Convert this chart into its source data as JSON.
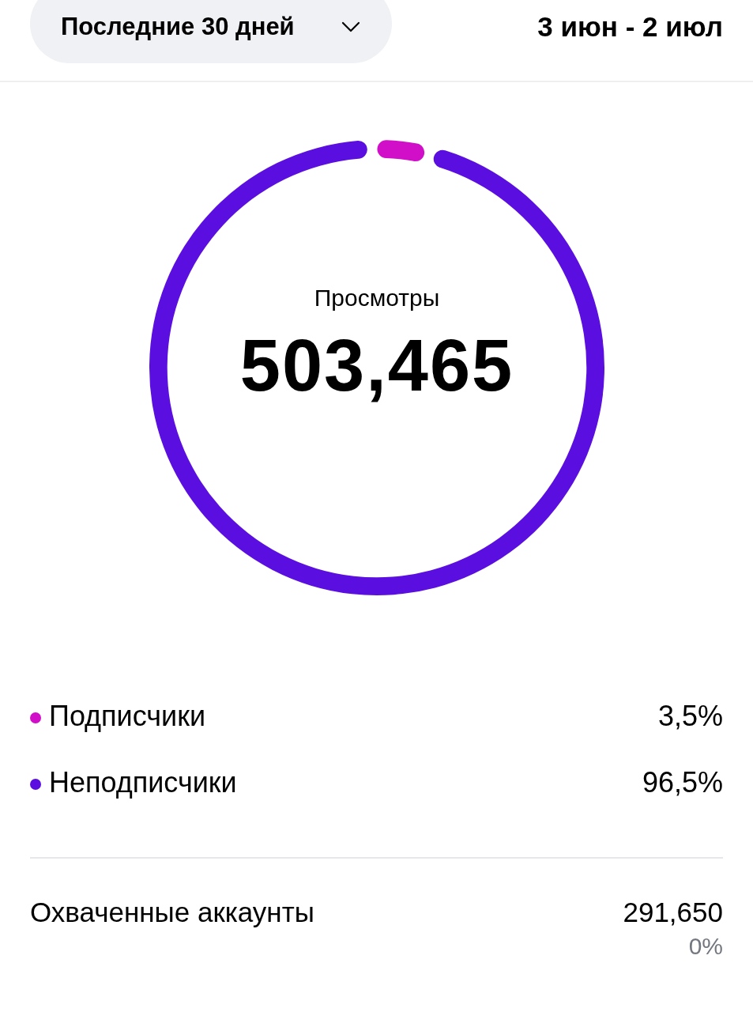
{
  "chart_data": {
    "type": "donut",
    "title": "Просмотры",
    "subtitle": "503,465",
    "categories": [
      "Подписчики",
      "Неподписчики"
    ],
    "values": [
      3.5,
      96.5
    ],
    "colors": [
      "#d10ec8",
      "#5a0fe0"
    ],
    "value_labels": [
      "3,5%",
      "96,5%"
    ],
    "legend": "bottom",
    "annotations": [
      "Последние 30 дней",
      "3 июн - 2 июл",
      "Охваченные аккаунты",
      "291,650",
      "0%"
    ]
  }
}
